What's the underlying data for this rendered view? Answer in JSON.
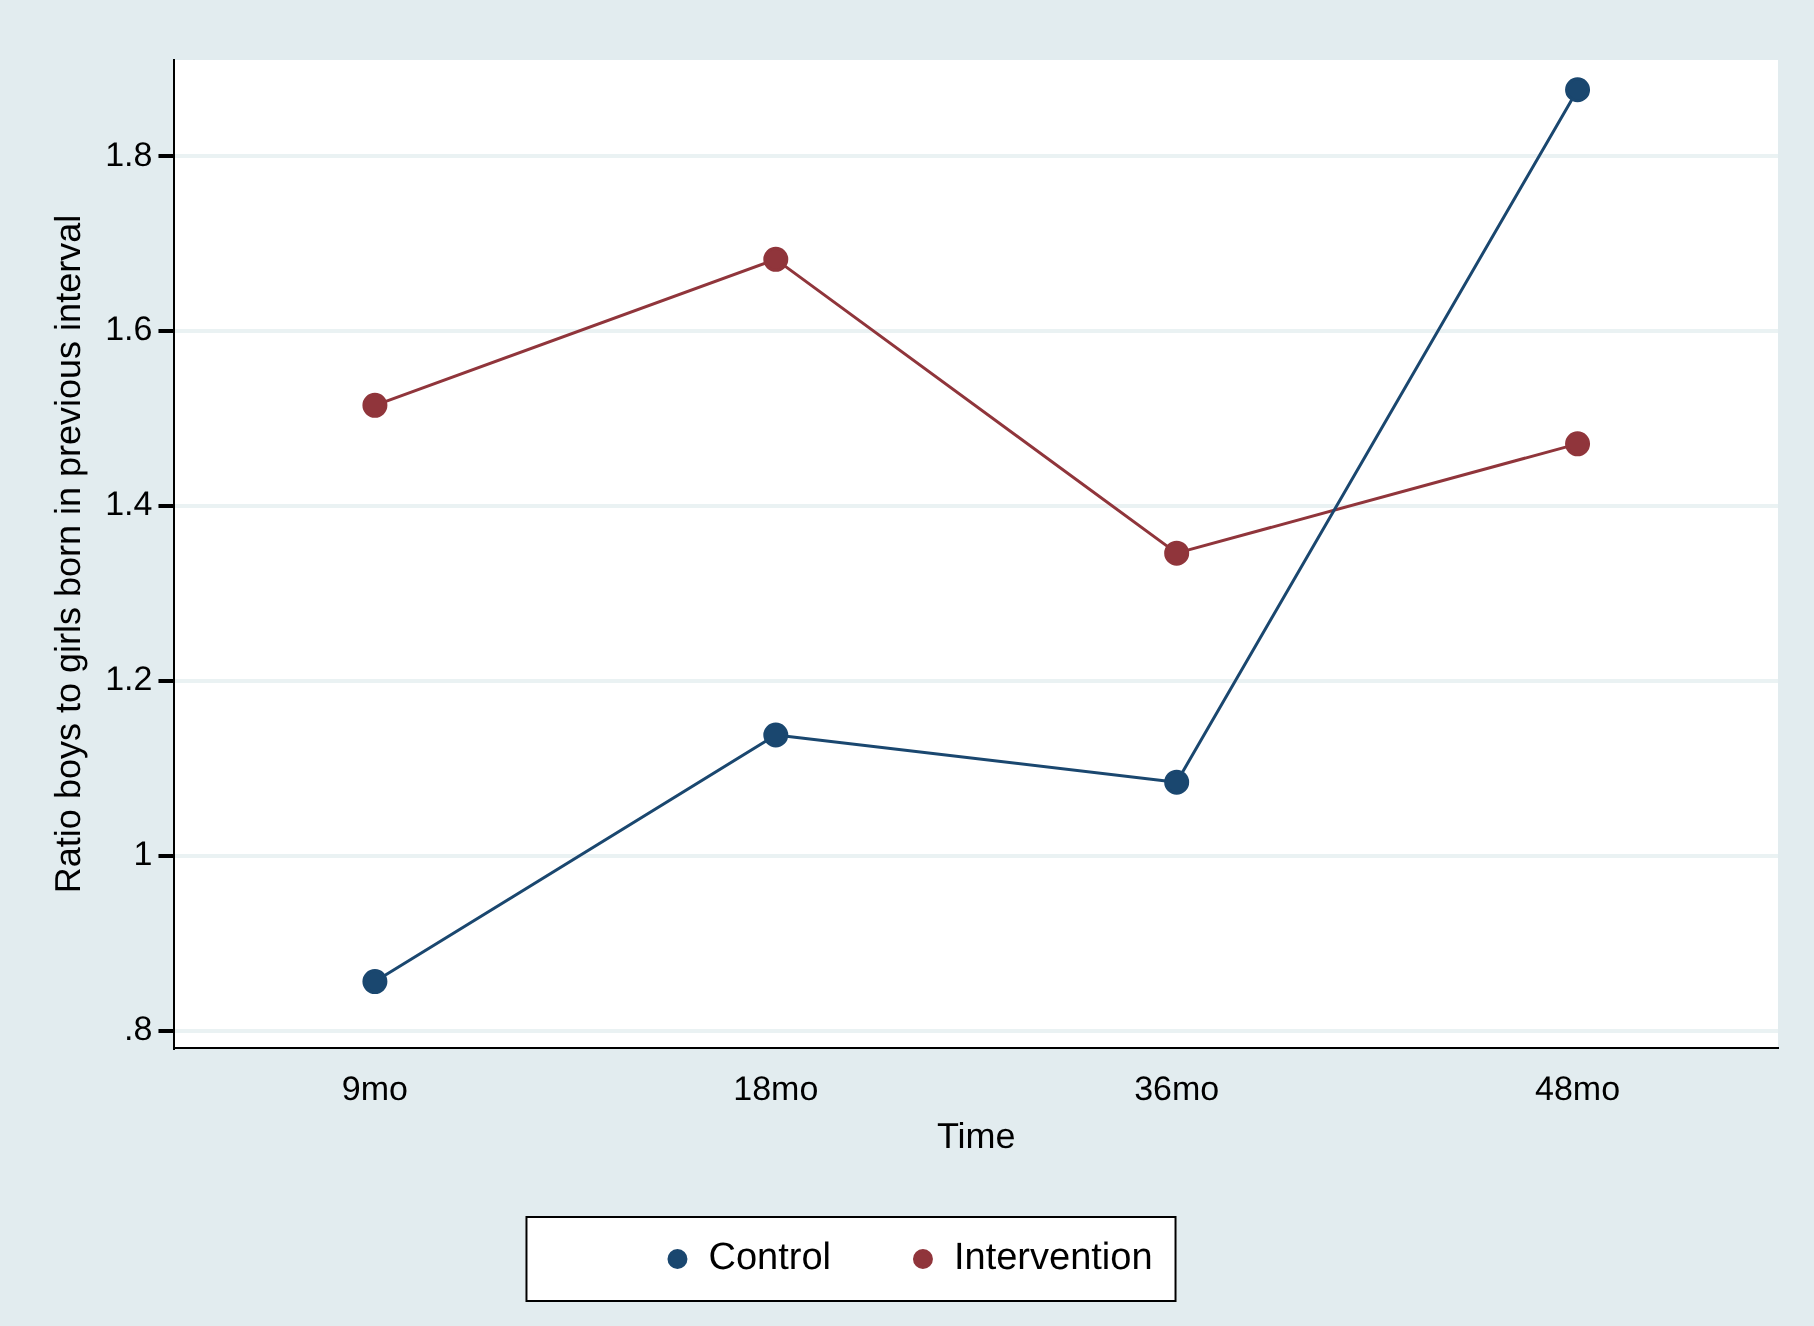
{
  "chart_data": {
    "type": "line",
    "xlabel": "Time",
    "ylabel": "Ratio boys to girls born in previous interval",
    "categories": [
      "9mo",
      "18mo",
      "36mo",
      "48mo"
    ],
    "series": [
      {
        "name": "Control",
        "color": "#1a476f",
        "values": [
          0.856,
          1.138,
          1.084,
          1.876
        ]
      },
      {
        "name": "Intervention",
        "color": "#90353b",
        "values": [
          1.515,
          1.682,
          1.346,
          1.471
        ]
      }
    ],
    "ylim": [
      0.78,
      1.91
    ],
    "yticks": [
      {
        "value": 0.8,
        "label": ".8"
      },
      1,
      1.2,
      1.4,
      1.6,
      1.8
    ],
    "grid": "y",
    "legend": "bottom",
    "marker": "circle",
    "line_style": "solid"
  }
}
